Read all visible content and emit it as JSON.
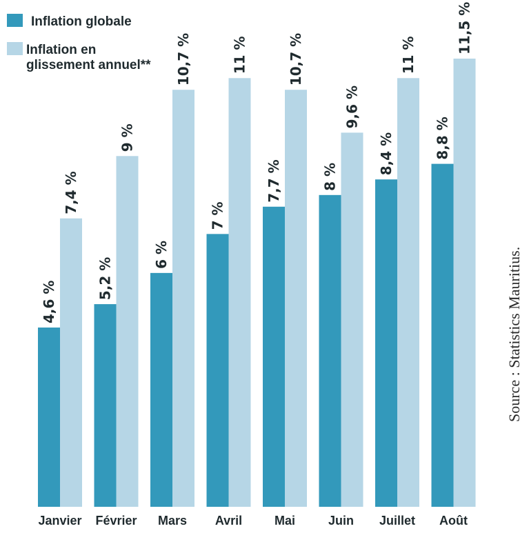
{
  "chart_data": {
    "type": "bar",
    "categories": [
      "Janvier",
      "Février",
      "Mars",
      "Avril",
      "Mai",
      "Juin",
      "Juillet",
      "Août"
    ],
    "series": [
      {
        "name": "Inflation globale",
        "color": "#3399bb",
        "values": [
          4.6,
          5.2,
          6,
          7,
          7.7,
          8,
          8.4,
          8.8
        ],
        "labels": [
          "4,6 %",
          "5,2 %",
          "6 %",
          "7 %",
          "7,7 %",
          "8 %",
          "8,4 %",
          "8,8 %"
        ]
      },
      {
        "name": "Inflation en glissement annuel**",
        "legend_lines": [
          "Inflation en",
          "glissement annuel**"
        ],
        "color": "#b6d6e6",
        "values": [
          7.4,
          9,
          10.7,
          11,
          10.7,
          9.6,
          11,
          11.5
        ],
        "labels": [
          "7,4 %",
          "9 %",
          "10,7 %",
          "11 %",
          "10,7 %",
          "9,6 %",
          "11 %",
          "11,5 %"
        ]
      }
    ],
    "ylim": [
      0,
      11.5
    ],
    "title": "",
    "xlabel": "",
    "ylabel": "",
    "legend_position": "top-left"
  },
  "source": "Source : Statistics Mauritius."
}
